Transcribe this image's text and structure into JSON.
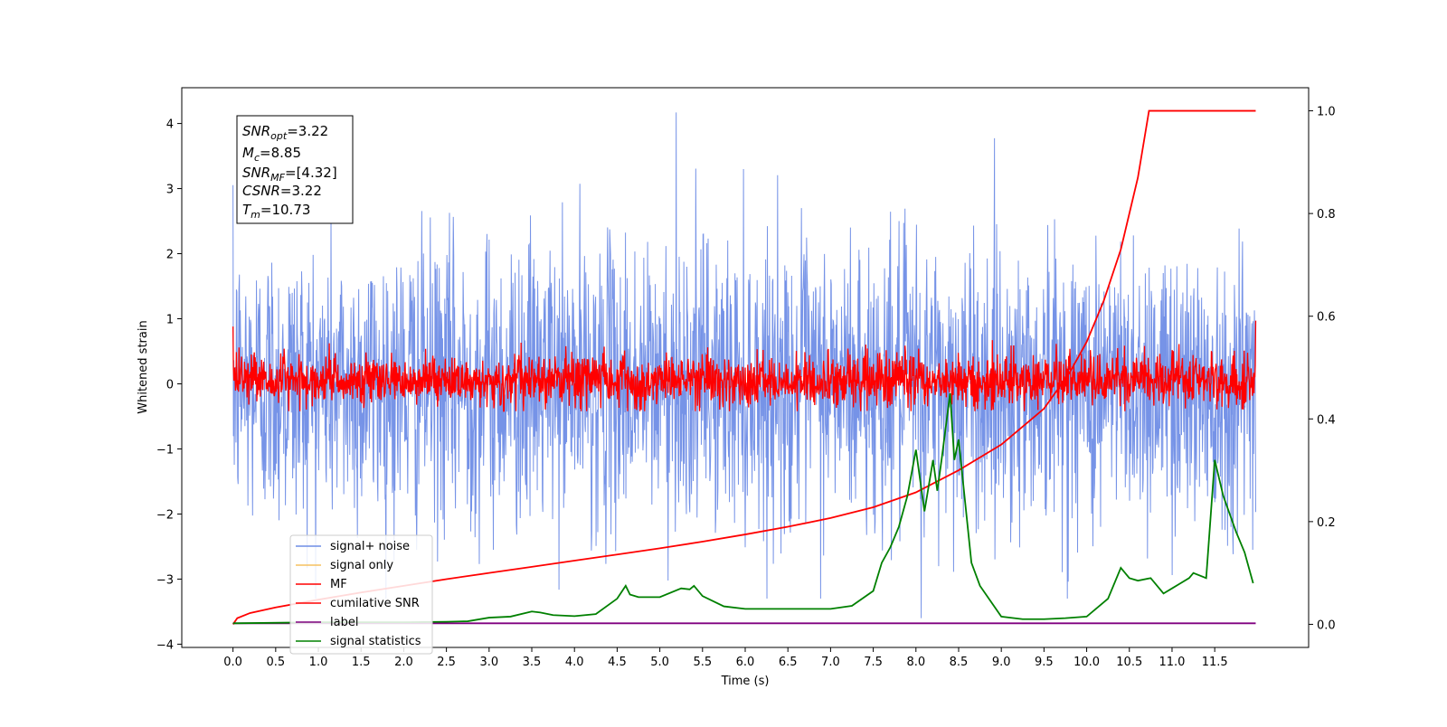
{
  "chart_data": {
    "type": "line",
    "xlabel": "Time (s)",
    "ylabel": "Whitened strain",
    "xlim": [
      -0.6,
      12.6
    ],
    "ylim": [
      -4.05,
      4.55
    ],
    "y2lim": [
      -0.045,
      1.045
    ],
    "x_ticks": [
      "0.0",
      "0.5",
      "1.0",
      "1.5",
      "2.0",
      "2.5",
      "3.0",
      "3.5",
      "4.0",
      "4.5",
      "5.0",
      "5.5",
      "6.0",
      "6.5",
      "7.0",
      "7.5",
      "8.0",
      "8.5",
      "9.0",
      "9.5",
      "10.0",
      "10.5",
      "11.0",
      "11.5"
    ],
    "y_ticks": [
      "−4",
      "−3",
      "−2",
      "−1",
      "0",
      "1",
      "2",
      "3",
      "4"
    ],
    "y2_ticks": [
      "0.0",
      "0.2",
      "0.4",
      "0.6",
      "0.8",
      "1.0"
    ],
    "info_box": {
      "snr_opt": {
        "base": "SNR",
        "sub": "opt",
        "value": "=3.22"
      },
      "mc": {
        "base": "M",
        "sub": "c",
        "value": "=8.85"
      },
      "snr_mf": {
        "base": "SNR",
        "sub": "MF",
        "value": "=[4.32]"
      },
      "csnr": {
        "base": "CSNR",
        "value": "=3.22"
      },
      "tm": {
        "base": "T",
        "sub": "m",
        "value": "=10.73"
      }
    },
    "legend": {
      "placement": "lower-left",
      "entries": [
        {
          "label": "signal+ noise",
          "color": "#6f8de6"
        },
        {
          "label": "signal only",
          "color": "#f5c060"
        },
        {
          "label": "MF",
          "color": "#ff0000"
        },
        {
          "label": "cumilative SNR",
          "color": "#ff0000"
        },
        {
          "label": "label",
          "color": "#800080"
        },
        {
          "label": "signal statistics",
          "color": "#008000"
        }
      ]
    },
    "series": [
      {
        "name": "signal+ noise",
        "axis": "left",
        "color": "#6f8de6",
        "noise": {
          "t_start": 0.0,
          "t_end": 11.98,
          "sigma": 1.1,
          "peak_max": 4.17,
          "peak_min": -3.6
        }
      },
      {
        "name": "MF",
        "axis": "left",
        "color": "#ff0000",
        "noise": {
          "t_start": 0.0,
          "t_end": 11.98,
          "mean": 0.05,
          "sigma": 0.2,
          "start_value": 0.88,
          "end_value": 0.97
        }
      },
      {
        "name": "cumilative SNR",
        "axis": "right",
        "color": "#ff0000",
        "x": [
          0.0,
          0.05,
          0.2,
          0.5,
          1,
          1.5,
          2,
          2.5,
          3,
          3.5,
          4,
          4.5,
          5,
          5.5,
          6,
          6.5,
          7,
          7.5,
          8,
          8.5,
          9,
          9.5,
          9.8,
          10,
          10.2,
          10.4,
          10.5,
          10.6,
          10.65,
          10.7,
          10.72,
          10.73,
          11.0,
          11.5,
          11.98
        ],
        "y": [
          0.0,
          0.012,
          0.022,
          0.033,
          0.048,
          0.062,
          0.075,
          0.088,
          0.1,
          0.112,
          0.124,
          0.136,
          0.148,
          0.161,
          0.175,
          0.19,
          0.207,
          0.228,
          0.257,
          0.3,
          0.35,
          0.42,
          0.49,
          0.55,
          0.63,
          0.73,
          0.8,
          0.87,
          0.92,
          0.97,
          0.99,
          1.0,
          1.0,
          1.0,
          1.0
        ]
      },
      {
        "name": "label",
        "axis": "right",
        "color": "#800080",
        "x": [
          0.0,
          11.98
        ],
        "y": [
          0.002,
          0.002
        ]
      },
      {
        "name": "signal statistics",
        "axis": "right",
        "color": "#008000",
        "x": [
          0.0,
          1.0,
          2.0,
          2.5,
          2.75,
          3.0,
          3.25,
          3.5,
          3.6,
          3.75,
          4.0,
          4.25,
          4.5,
          4.6,
          4.65,
          4.75,
          5.0,
          5.25,
          5.35,
          5.4,
          5.5,
          5.75,
          6.0,
          6.25,
          6.5,
          6.75,
          7.0,
          7.25,
          7.5,
          7.6,
          7.7,
          7.8,
          7.9,
          8.0,
          8.1,
          8.2,
          8.25,
          8.3,
          8.4,
          8.45,
          8.5,
          8.55,
          8.6,
          8.65,
          8.75,
          9.0,
          9.25,
          9.5,
          9.75,
          10.0,
          10.25,
          10.4,
          10.5,
          10.6,
          10.75,
          10.9,
          11.0,
          11.1,
          11.2,
          11.25,
          11.4,
          11.5,
          11.6,
          11.75,
          11.85,
          11.95
        ],
        "y": [
          0.002,
          0.004,
          0.004,
          0.005,
          0.006,
          0.013,
          0.015,
          0.025,
          0.023,
          0.018,
          0.016,
          0.02,
          0.05,
          0.075,
          0.058,
          0.053,
          0.053,
          0.07,
          0.068,
          0.075,
          0.055,
          0.035,
          0.03,
          0.03,
          0.03,
          0.03,
          0.03,
          0.036,
          0.065,
          0.12,
          0.15,
          0.19,
          0.25,
          0.34,
          0.22,
          0.32,
          0.26,
          0.32,
          0.45,
          0.32,
          0.36,
          0.28,
          0.2,
          0.12,
          0.075,
          0.015,
          0.01,
          0.01,
          0.012,
          0.015,
          0.05,
          0.11,
          0.09,
          0.085,
          0.09,
          0.06,
          0.07,
          0.08,
          0.09,
          0.1,
          0.09,
          0.32,
          0.25,
          0.18,
          0.14,
          0.08
        ]
      }
    ]
  }
}
